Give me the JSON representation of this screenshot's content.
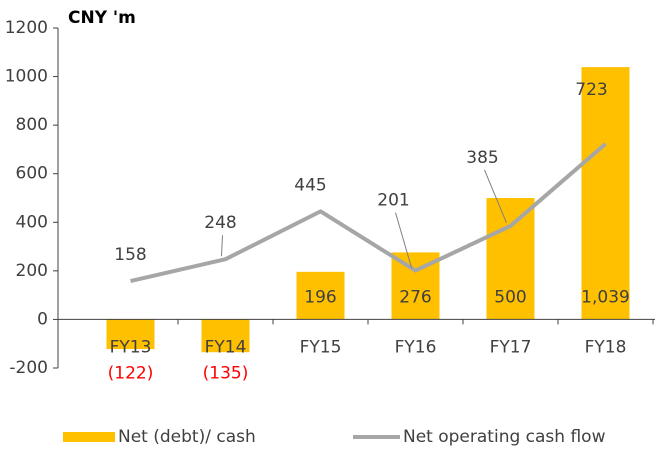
{
  "chart_data": {
    "type": "bar_line",
    "y_axis_label": "CNY 'm",
    "categories": [
      "FY13",
      "FY14",
      "FY15",
      "FY16",
      "FY17",
      "FY18"
    ],
    "series": [
      {
        "name": "Net (debt)/ cash",
        "type": "bar",
        "color": "#ffc000",
        "values": [
          -122,
          -135,
          196,
          276,
          500,
          1039
        ],
        "value_labels": [
          "(122)",
          "(135)",
          "196",
          "276",
          "500",
          "1,039"
        ],
        "negative_label_color": "#ff0000"
      },
      {
        "name": "Net operating cash flow",
        "type": "line",
        "color": "#a6a6a6",
        "values": [
          158,
          248,
          445,
          201,
          385,
          723
        ]
      }
    ],
    "ylim": [
      -200,
      1200
    ],
    "yticks": [
      -200,
      0,
      200,
      400,
      600,
      800,
      1000,
      1200
    ],
    "legend": "bottom"
  }
}
